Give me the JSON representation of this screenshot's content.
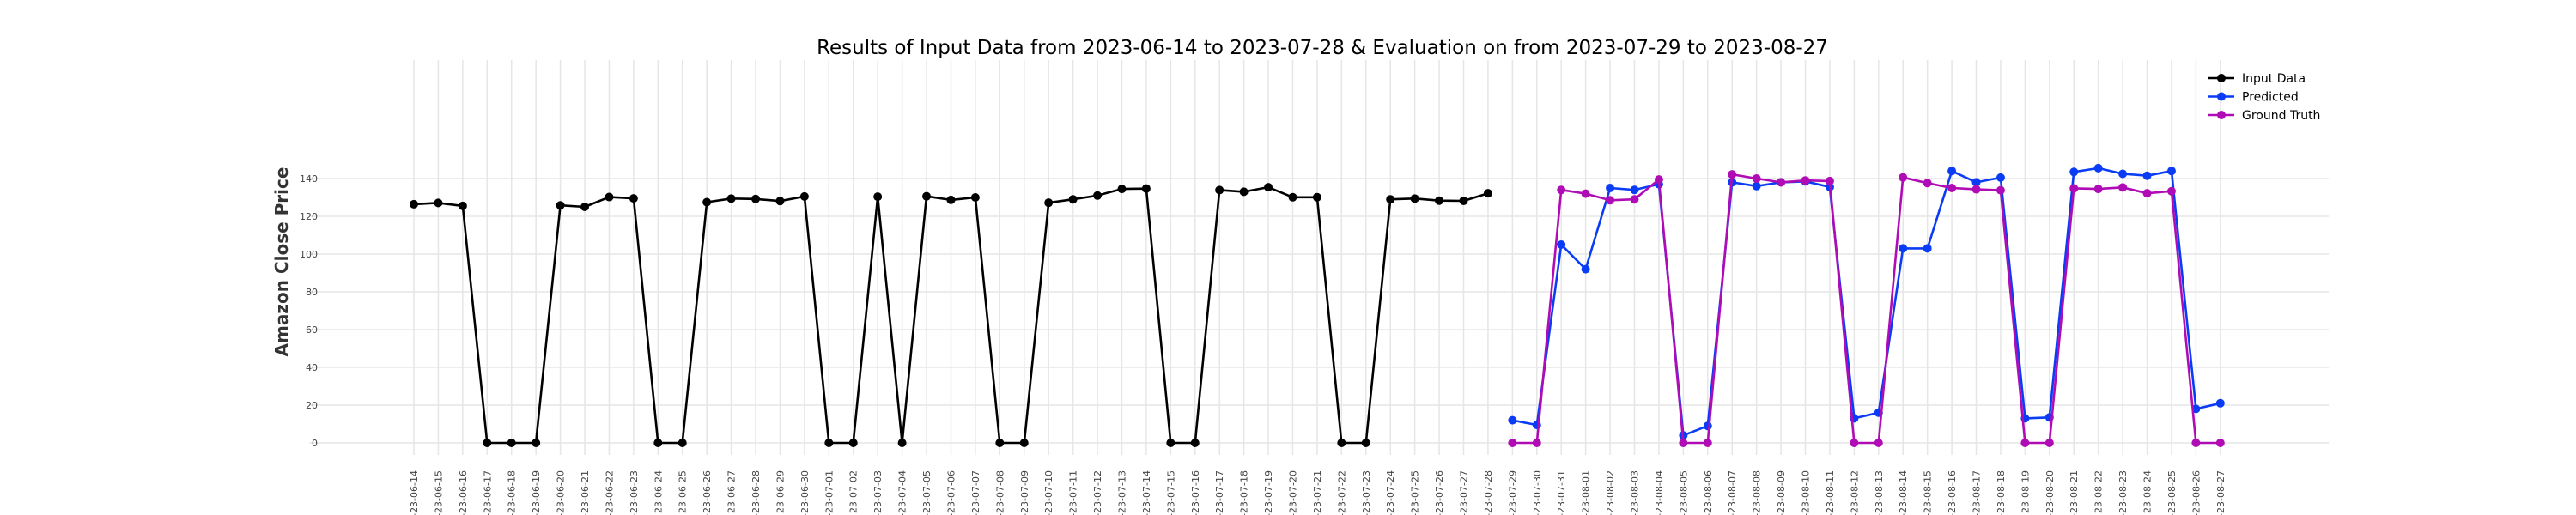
{
  "chart_data": {
    "type": "line",
    "title": "Results of Input Data from 2023-06-14 to 2023-07-28 & Evaluation on from 2023-07-29 to 2023-08-27",
    "xlabel": "",
    "ylabel": "Amazon Close Price",
    "ylim": [
      -5,
      150
    ],
    "yticks": [
      0,
      20,
      40,
      60,
      80,
      100,
      120,
      140
    ],
    "grid": true,
    "legend_position": "top-right",
    "x": [
      "2023-06-14",
      "2023-06-15",
      "2023-06-16",
      "2023-06-17",
      "2023-06-18",
      "2023-06-19",
      "2023-06-20",
      "2023-06-21",
      "2023-06-22",
      "2023-06-23",
      "2023-06-24",
      "2023-06-25",
      "2023-06-26",
      "2023-06-27",
      "2023-06-28",
      "2023-06-29",
      "2023-06-30",
      "2023-07-01",
      "2023-07-02",
      "2023-07-03",
      "2023-07-04",
      "2023-07-05",
      "2023-07-06",
      "2023-07-07",
      "2023-07-08",
      "2023-07-09",
      "2023-07-10",
      "2023-07-11",
      "2023-07-12",
      "2023-07-13",
      "2023-07-14",
      "2023-07-15",
      "2023-07-16",
      "2023-07-17",
      "2023-07-18",
      "2023-07-19",
      "2023-07-20",
      "2023-07-21",
      "2023-07-22",
      "2023-07-23",
      "2023-07-24",
      "2023-07-25",
      "2023-07-26",
      "2023-07-27",
      "2023-07-28",
      "2023-07-29",
      "2023-07-30",
      "2023-07-31",
      "2023-08-01",
      "2023-08-02",
      "2023-08-03",
      "2023-08-04",
      "2023-08-05",
      "2023-08-06",
      "2023-08-07",
      "2023-08-08",
      "2023-08-09",
      "2023-08-10",
      "2023-08-11",
      "2023-08-12",
      "2023-08-13",
      "2023-08-14",
      "2023-08-15",
      "2023-08-16",
      "2023-08-17",
      "2023-08-18",
      "2023-08-19",
      "2023-08-20",
      "2023-08-21",
      "2023-08-22",
      "2023-08-23",
      "2023-08-24",
      "2023-08-25",
      "2023-08-26",
      "2023-08-27"
    ],
    "x_tick_labels": [
      "-23-06-14",
      "-23-06-15",
      "-23-06-16",
      "-23-06-17",
      "-23-06-18",
      "-23-06-19",
      "-23-06-20",
      "-23-06-21",
      "-23-06-22",
      "-23-06-23",
      "-23-06-24",
      "-23-06-25",
      "-23-06-26",
      "-23-06-27",
      "-23-06-28",
      "-23-06-29",
      "-23-06-30",
      "-23-07-01",
      "-23-07-02",
      "-23-07-03",
      "-23-07-04",
      "-23-07-05",
      "-23-07-06",
      "-23-07-07",
      "-23-07-08",
      "-23-07-09",
      "-23-07-10",
      "-23-07-11",
      "-23-07-12",
      "-23-07-13",
      "-23-07-14",
      "-23-07-15",
      "-23-07-16",
      "-23-07-17",
      "-23-07-18",
      "-23-07-19",
      "-23-07-20",
      "-23-07-21",
      "-23-07-22",
      "-23-07-23",
      "-23-07-24",
      "-23-07-25",
      "-23-07-26",
      "-23-07-27",
      "-23-07-28",
      "-23-07-29",
      "-23-07-30",
      "-23-07-31",
      "-23-08-01",
      "-23-08-02",
      "-23-08-03",
      "-23-08-04",
      "-23-08-05",
      "-23-08-06",
      "-23-08-07",
      "-23-08-08",
      "-23-08-09",
      "-23-08-10",
      "-23-08-11",
      "-23-08-12",
      "-23-08-13",
      "-23-08-14",
      "-23-08-15",
      "-23-08-16",
      "-23-08-17",
      "-23-08-18",
      "-23-08-19",
      "-23-08-20",
      "-23-08-21",
      "-23-08-22",
      "-23-08-23",
      "-23-08-24",
      "-23-08-25",
      "-23-08-26",
      "-23-08-27"
    ],
    "series": [
      {
        "name": "Input Data",
        "color": "#000000",
        "x": [
          "2023-06-14",
          "2023-06-15",
          "2023-06-16",
          "2023-06-17",
          "2023-06-18",
          "2023-06-19",
          "2023-06-20",
          "2023-06-21",
          "2023-06-22",
          "2023-06-23",
          "2023-06-24",
          "2023-06-25",
          "2023-06-26",
          "2023-06-27",
          "2023-06-28",
          "2023-06-29",
          "2023-06-30",
          "2023-07-01",
          "2023-07-02",
          "2023-07-03",
          "2023-07-04",
          "2023-07-05",
          "2023-07-06",
          "2023-07-07",
          "2023-07-08",
          "2023-07-09",
          "2023-07-10",
          "2023-07-11",
          "2023-07-12",
          "2023-07-13",
          "2023-07-14",
          "2023-07-15",
          "2023-07-16",
          "2023-07-17",
          "2023-07-18",
          "2023-07-19",
          "2023-07-20",
          "2023-07-21",
          "2023-07-22",
          "2023-07-23",
          "2023-07-24",
          "2023-07-25",
          "2023-07-26",
          "2023-07-27",
          "2023-07-28"
        ],
        "values": [
          126.4,
          127.1,
          125.5,
          0,
          0,
          0,
          125.8,
          125.0,
          130.2,
          129.5,
          0,
          0,
          127.5,
          129.4,
          129.2,
          128.1,
          130.5,
          0,
          0,
          130.4,
          0,
          130.6,
          128.7,
          130.0,
          0,
          0,
          127.2,
          129.0,
          131.0,
          134.5,
          134.7,
          0,
          0,
          133.9,
          133.0,
          135.4,
          130.1,
          130.1,
          0,
          0,
          129.0,
          129.4,
          128.3,
          128.2,
          132.2
        ]
      },
      {
        "name": "Predicted",
        "color": "#0b3cf5",
        "x": [
          "2023-07-29",
          "2023-07-30",
          "2023-07-31",
          "2023-08-01",
          "2023-08-02",
          "2023-08-03",
          "2023-08-04",
          "2023-08-05",
          "2023-08-06",
          "2023-08-07",
          "2023-08-08",
          "2023-08-09",
          "2023-08-10",
          "2023-08-11",
          "2023-08-12",
          "2023-08-13",
          "2023-08-14",
          "2023-08-15",
          "2023-08-16",
          "2023-08-17",
          "2023-08-18",
          "2023-08-19",
          "2023-08-20",
          "2023-08-21",
          "2023-08-22",
          "2023-08-23",
          "2023-08-24",
          "2023-08-25",
          "2023-08-26",
          "2023-08-27"
        ],
        "values": [
          12.0,
          9.5,
          105.0,
          92.0,
          135.0,
          134.0,
          137.0,
          4.0,
          9.0,
          138.0,
          136.0,
          138.0,
          138.5,
          135.5,
          13.0,
          16.0,
          103.0,
          103.0,
          144.0,
          138.0,
          140.5,
          13.0,
          13.5,
          143.5,
          145.5,
          142.5,
          141.5,
          144.0,
          18.0,
          21.0
        ]
      },
      {
        "name": "Ground Truth",
        "color": "#b00cb5",
        "x": [
          "2023-07-29",
          "2023-07-30",
          "2023-07-31",
          "2023-08-01",
          "2023-08-02",
          "2023-08-03",
          "2023-08-04",
          "2023-08-05",
          "2023-08-06",
          "2023-08-07",
          "2023-08-08",
          "2023-08-09",
          "2023-08-10",
          "2023-08-11",
          "2023-08-12",
          "2023-08-13",
          "2023-08-14",
          "2023-08-15",
          "2023-08-16",
          "2023-08-17",
          "2023-08-18",
          "2023-08-19",
          "2023-08-20",
          "2023-08-21",
          "2023-08-22",
          "2023-08-23",
          "2023-08-24",
          "2023-08-25",
          "2023-08-26",
          "2023-08-27"
        ],
        "values": [
          0,
          0,
          134.0,
          132.0,
          128.5,
          129.0,
          139.5,
          0,
          0,
          142.2,
          140.0,
          138.0,
          139.0,
          138.7,
          0,
          0,
          140.6,
          137.6,
          135.0,
          134.3,
          133.8,
          0,
          0,
          134.8,
          134.5,
          135.3,
          132.2,
          133.3,
          0,
          0
        ]
      }
    ]
  }
}
